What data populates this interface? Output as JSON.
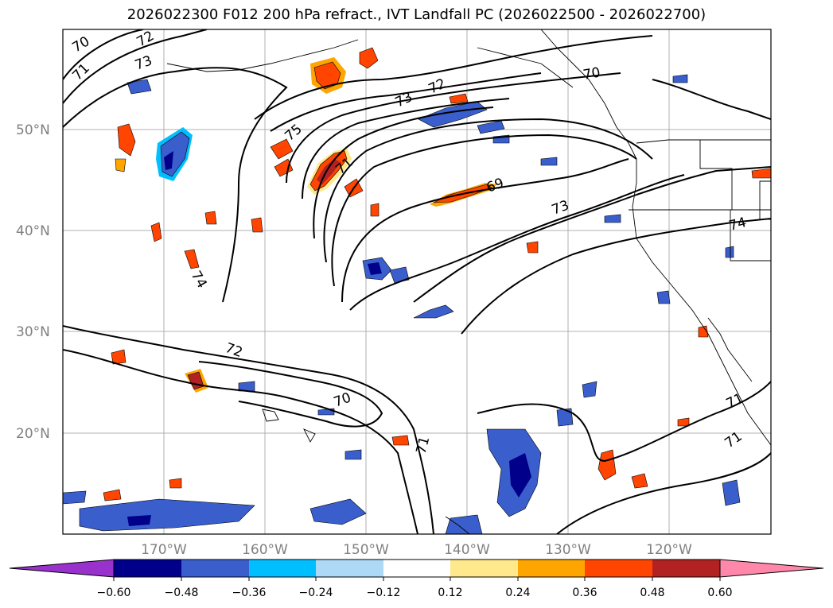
{
  "title": "2026022300 F012 200 hPa refract., IVT Landfall PC (2026022500 - 2026022700)",
  "lat_labels": [
    "50°N",
    "40°N",
    "30°N",
    "20°N"
  ],
  "lon_labels": [
    "170°W",
    "160°W",
    "150°W",
    "140°W",
    "130°W",
    "120°W"
  ],
  "colorbar": {
    "colors": [
      "#9932CC",
      "#00008B",
      "#3A5FCD",
      "#00BFFF",
      "#ADD8F6",
      "#FFFFFF",
      "#FFE98C",
      "#FFA500",
      "#FF4500",
      "#B22222",
      "#FF88AA"
    ],
    "tick_labels": [
      "−0.60",
      "−0.48",
      "−0.36",
      "−0.24",
      "−0.12",
      "0.12",
      "0.24",
      "0.36",
      "0.48",
      "0.60"
    ]
  },
  "contour_labels": [
    "70",
    "72",
    "71",
    "73",
    "75",
    "71",
    "73",
    "72",
    "70",
    "69",
    "73",
    "74",
    "74",
    "72",
    "70",
    "71",
    "71",
    "71"
  ],
  "map": {
    "lat_range": [
      10,
      60
    ],
    "lon_range": [
      -180,
      -110
    ],
    "land_color": "#ffffff",
    "grid": true
  }
}
